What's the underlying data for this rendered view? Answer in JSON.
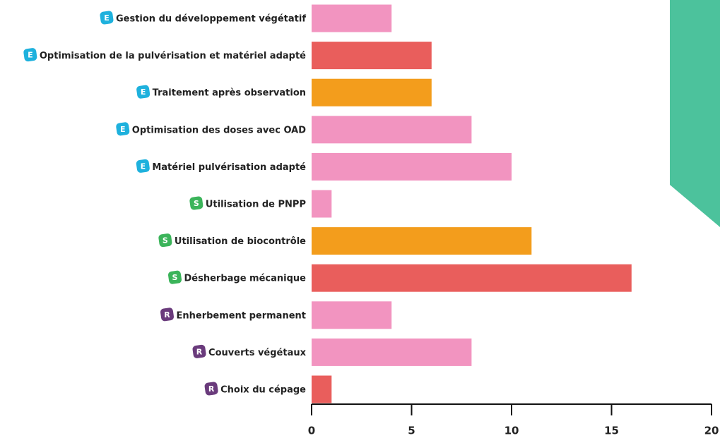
{
  "chart_data": {
    "type": "bar",
    "orientation": "horizontal",
    "categories": [
      "Gestion du développement végétatif",
      "Optimisation de la pulvérisation et matériel  adapté",
      "Traitement après observation",
      "Optimisation des doses avec OAD",
      "Matériel pulvérisation adapté",
      "Utilisation de PNPP",
      "Utilisation de biocontrôle",
      "Désherbage mécanique",
      "Enherbement permanent",
      "Couverts végétaux",
      "Choix du cépage"
    ],
    "badges": [
      "E",
      "E",
      "E",
      "E",
      "E",
      "S",
      "S",
      "S",
      "R",
      "R",
      "R"
    ],
    "badge_colors": {
      "E": "#1eb1dd",
      "S": "#3bb45a",
      "R": "#6a3b7c"
    },
    "values": [
      4,
      6,
      6,
      8,
      10,
      1,
      11,
      16,
      4,
      8,
      1
    ],
    "colors": [
      "#f294c0",
      "#e95e5c",
      "#f39d1c",
      "#f294c0",
      "#f294c0",
      "#f294c0",
      "#f39d1c",
      "#e95e5c",
      "#f294c0",
      "#f294c0",
      "#e95e5c"
    ],
    "xlim": [
      0,
      20
    ],
    "xticks": [
      0,
      5,
      10,
      15,
      20
    ],
    "grid": false
  }
}
